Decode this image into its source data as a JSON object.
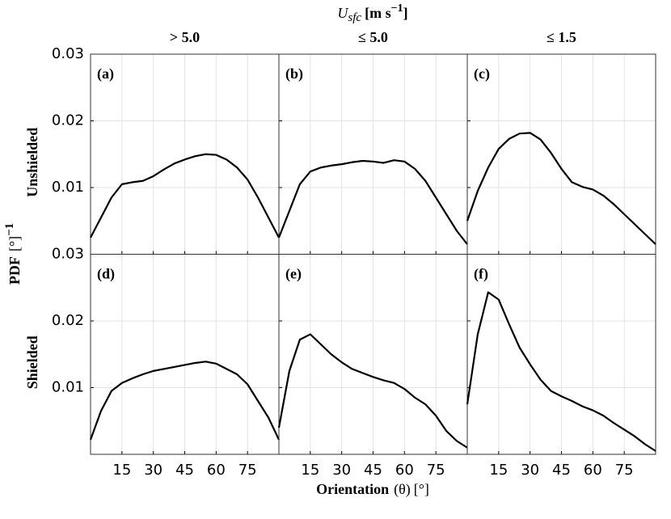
{
  "figure": {
    "super_title": {
      "symbol": "U",
      "subscript": "sfc",
      "unit": "[m s",
      "exponent": "−1",
      "close": "]"
    },
    "column_titles": [
      "> 5.0",
      "≤ 5.0",
      "≤ 1.5"
    ],
    "row_labels": [
      "Unshielded",
      "Shielded"
    ],
    "ylabel": {
      "name": "PDF",
      "unit": "[°]",
      "exponent": "−1"
    },
    "xlabel": {
      "name": "Orientation",
      "symbol": "(θ)",
      "unit": "[°]"
    }
  },
  "chart_data": [
    {
      "type": "line",
      "label": "(a)",
      "color": "#000000",
      "x": [
        0,
        5,
        10,
        15,
        20,
        25,
        30,
        35,
        40,
        45,
        50,
        55,
        60,
        65,
        70,
        75,
        80,
        85,
        90
      ],
      "values": [
        0.0025,
        0.0055,
        0.0085,
        0.0105,
        0.0108,
        0.011,
        0.0117,
        0.0127,
        0.0136,
        0.0142,
        0.0147,
        0.015,
        0.0149,
        0.0142,
        0.013,
        0.0112,
        0.0085,
        0.0055,
        0.0025
      ],
      "xlim": [
        0,
        90
      ],
      "ylim": [
        0,
        0.03
      ],
      "xticks": [
        15,
        30,
        45,
        60,
        75
      ],
      "yticks": [
        0.01,
        0.02,
        0.03
      ],
      "grid": true
    },
    {
      "type": "line",
      "label": "(b)",
      "color": "#000000",
      "x": [
        0,
        5,
        10,
        15,
        20,
        25,
        30,
        35,
        40,
        45,
        50,
        55,
        60,
        65,
        70,
        75,
        80,
        85,
        90
      ],
      "values": [
        0.0025,
        0.0065,
        0.0105,
        0.0124,
        0.013,
        0.0133,
        0.0135,
        0.0138,
        0.014,
        0.0139,
        0.0137,
        0.0141,
        0.0139,
        0.0128,
        0.011,
        0.0085,
        0.006,
        0.0035,
        0.0015
      ],
      "xlim": [
        0,
        90
      ],
      "ylim": [
        0,
        0.03
      ],
      "xticks": [
        15,
        30,
        45,
        60,
        75
      ],
      "yticks": [
        0.01,
        0.02,
        0.03
      ],
      "grid": true
    },
    {
      "type": "line",
      "label": "(c)",
      "color": "#000000",
      "x": [
        0,
        5,
        10,
        15,
        20,
        25,
        30,
        35,
        40,
        45,
        50,
        55,
        60,
        65,
        70,
        75,
        80,
        85,
        90
      ],
      "values": [
        0.005,
        0.0095,
        0.013,
        0.0158,
        0.0173,
        0.0181,
        0.0182,
        0.0172,
        0.0152,
        0.0128,
        0.0108,
        0.0101,
        0.0097,
        0.0088,
        0.0075,
        0.006,
        0.0045,
        0.003,
        0.0015
      ],
      "xlim": [
        0,
        90
      ],
      "ylim": [
        0,
        0.03
      ],
      "xticks": [
        15,
        30,
        45,
        60,
        75
      ],
      "yticks": [
        0.01,
        0.02,
        0.03
      ],
      "grid": true
    },
    {
      "type": "line",
      "label": "(d)",
      "color": "#000000",
      "x": [
        0,
        5,
        10,
        15,
        20,
        25,
        30,
        35,
        40,
        45,
        50,
        55,
        60,
        65,
        70,
        75,
        80,
        85,
        90
      ],
      "values": [
        0.0022,
        0.0065,
        0.0095,
        0.0107,
        0.0114,
        0.012,
        0.0125,
        0.0128,
        0.0131,
        0.0134,
        0.0137,
        0.0139,
        0.0136,
        0.0128,
        0.012,
        0.0105,
        0.008,
        0.0055,
        0.0022
      ],
      "xlim": [
        0,
        90
      ],
      "ylim": [
        0,
        0.03
      ],
      "xticks": [
        15,
        30,
        45,
        60,
        75
      ],
      "yticks": [
        0.01,
        0.02,
        0.03
      ],
      "grid": true
    },
    {
      "type": "line",
      "label": "(e)",
      "color": "#000000",
      "x": [
        0,
        5,
        10,
        15,
        20,
        25,
        30,
        35,
        40,
        45,
        50,
        55,
        60,
        65,
        70,
        75,
        80,
        85,
        90
      ],
      "values": [
        0.004,
        0.0125,
        0.0172,
        0.018,
        0.0165,
        0.015,
        0.0138,
        0.0128,
        0.0122,
        0.0116,
        0.0111,
        0.0107,
        0.0098,
        0.0085,
        0.0075,
        0.0058,
        0.0035,
        0.002,
        0.001
      ],
      "xlim": [
        0,
        90
      ],
      "ylim": [
        0,
        0.03
      ],
      "xticks": [
        15,
        30,
        45,
        60,
        75
      ],
      "yticks": [
        0.01,
        0.02,
        0.03
      ],
      "grid": true
    },
    {
      "type": "line",
      "label": "(f)",
      "color": "#000000",
      "x": [
        0,
        5,
        10,
        15,
        20,
        25,
        30,
        35,
        40,
        45,
        50,
        55,
        60,
        65,
        70,
        75,
        80,
        85,
        90
      ],
      "values": [
        0.0075,
        0.018,
        0.0243,
        0.0232,
        0.0195,
        0.016,
        0.0135,
        0.0112,
        0.0095,
        0.0087,
        0.008,
        0.0072,
        0.0066,
        0.0058,
        0.0047,
        0.0037,
        0.0027,
        0.0015,
        0.0005
      ],
      "xlim": [
        0,
        90
      ],
      "ylim": [
        0,
        0.03
      ],
      "xticks": [
        15,
        30,
        45,
        60,
        75
      ],
      "yticks": [
        0.01,
        0.02,
        0.03
      ],
      "grid": true
    }
  ]
}
